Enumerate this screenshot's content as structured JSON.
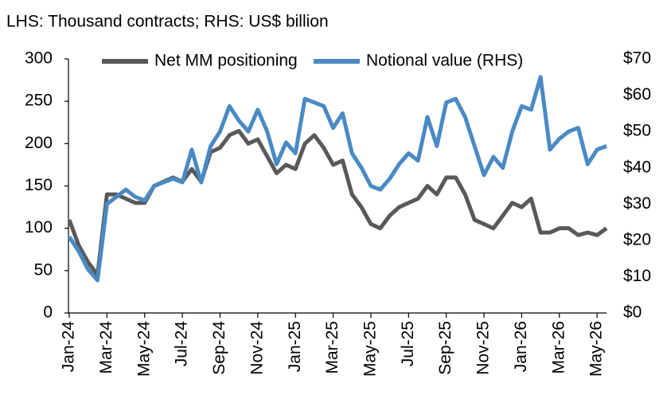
{
  "chart_data": {
    "type": "line",
    "subtitle": "LHS: Thousand contracts; RHS: US$ billion",
    "categories": [
      "Jan-24",
      null,
      null,
      null,
      "Mar-24",
      null,
      null,
      null,
      "May-24",
      null,
      null,
      null,
      "Jul-24",
      null,
      null,
      null,
      "Sep-24",
      null,
      null,
      null,
      "Nov-24",
      null,
      null,
      null,
      "Jan-25",
      null,
      null,
      null,
      "Mar-25",
      null,
      null,
      null,
      "May-25",
      null,
      null,
      null,
      "Jul-25",
      null,
      null,
      null,
      "Sep-25",
      null,
      null,
      null,
      "Nov-25",
      null,
      null,
      null,
      "Jan-26",
      null,
      null,
      null,
      "Mar-26",
      null,
      null,
      null,
      "May-26",
      null
    ],
    "series": [
      {
        "name": "Net MM positioning",
        "color": "#58595b",
        "values": [
          110,
          80,
          60,
          45,
          140,
          140,
          135,
          130,
          130,
          150,
          155,
          160,
          155,
          170,
          155,
          190,
          195,
          210,
          215,
          200,
          205,
          185,
          165,
          175,
          170,
          200,
          210,
          195,
          175,
          180,
          140,
          125,
          105,
          100,
          115,
          125,
          130,
          135,
          150,
          140,
          160,
          160,
          140,
          110,
          105,
          100,
          115,
          130,
          125,
          135,
          95,
          95,
          100,
          100,
          92,
          95,
          92,
          100
        ]
      },
      {
        "name": "Notional value (RHS)",
        "color": "#4a8ac4",
        "axis": "y2",
        "values": [
          21,
          17,
          12,
          9,
          30,
          32,
          34,
          32,
          31,
          35,
          36,
          37,
          36,
          45,
          36,
          46,
          50,
          57,
          53,
          50,
          56,
          50,
          41,
          47,
          44,
          59,
          58,
          57,
          51,
          55,
          44,
          40,
          35,
          34,
          37,
          41,
          44,
          42,
          54,
          46,
          58,
          59,
          54,
          46,
          38,
          43,
          40,
          50,
          57,
          56,
          65,
          45,
          48,
          50,
          51,
          41,
          45,
          46
        ]
      }
    ],
    "ylim": [
      0,
      300
    ],
    "yticks": [
      0,
      50,
      100,
      150,
      200,
      250,
      300
    ],
    "y2lim": [
      0,
      70
    ],
    "y2ticks": [
      {
        "value": 0,
        "label": "$0"
      },
      {
        "value": 10,
        "label": "$10"
      },
      {
        "value": 20,
        "label": "$20"
      },
      {
        "value": 30,
        "label": "$30"
      },
      {
        "value": 40,
        "label": "$40"
      },
      {
        "value": 50,
        "label": "$50"
      },
      {
        "value": 60,
        "label": "$60"
      },
      {
        "value": 70,
        "label": "$70"
      }
    ],
    "legend": "top"
  }
}
